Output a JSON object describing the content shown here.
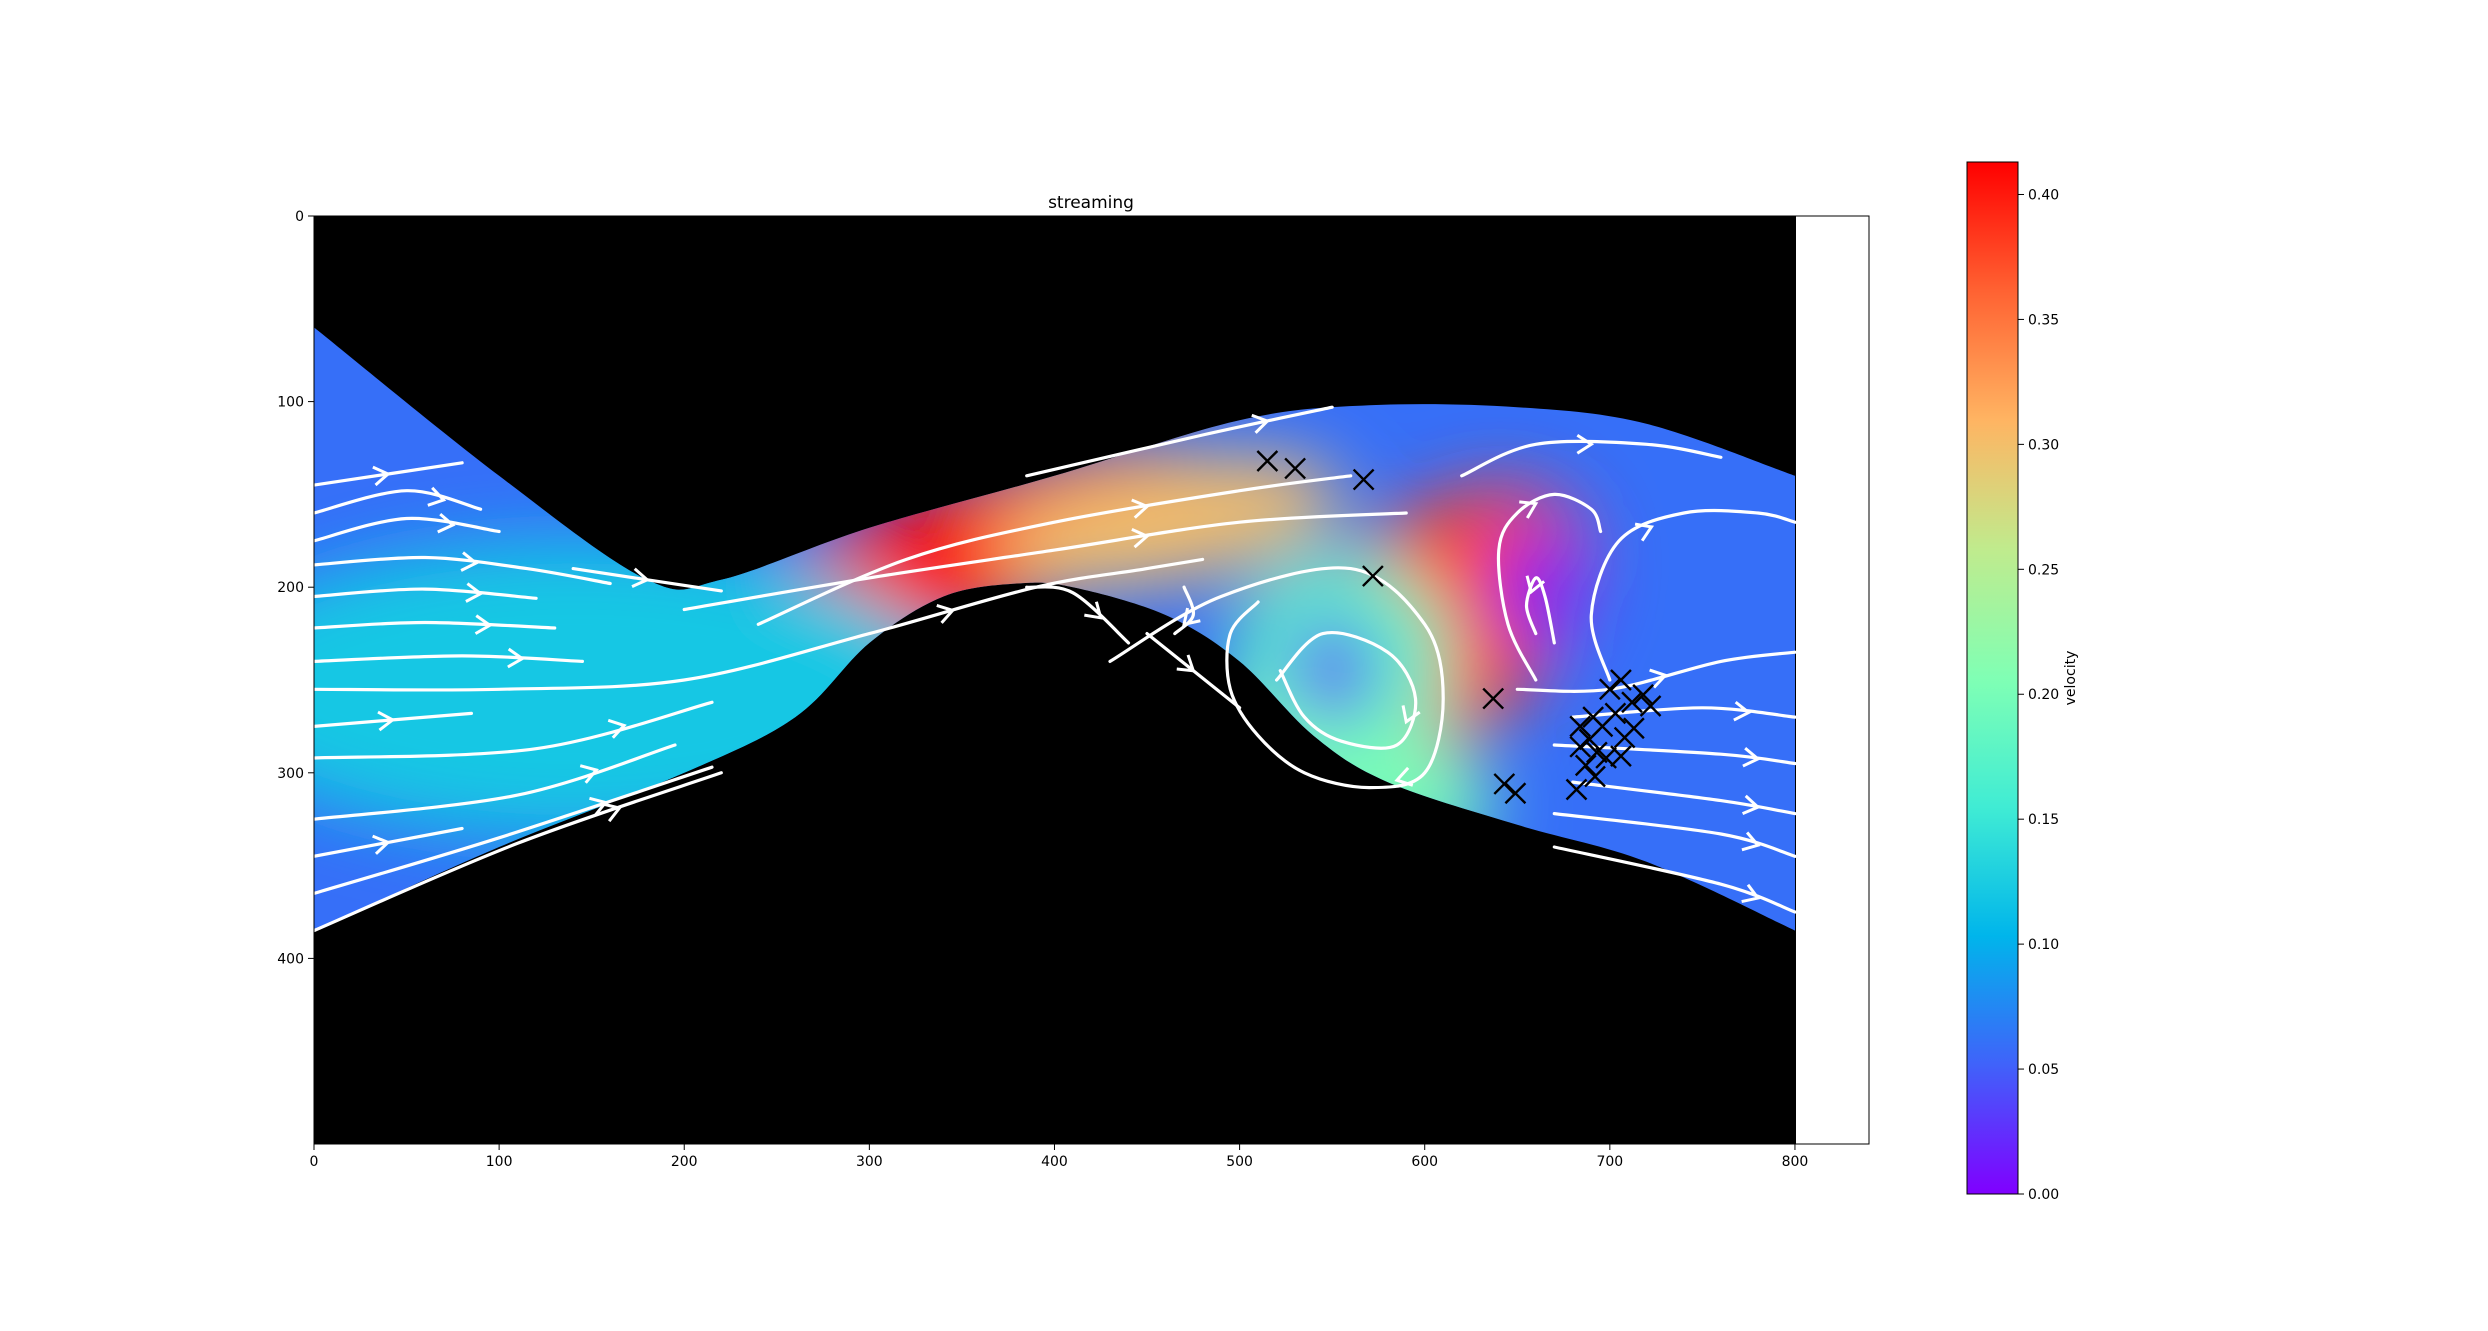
{
  "chart_data": {
    "type": "heatmap",
    "title": "streaming",
    "xlabel": "",
    "ylabel": "",
    "xlim": [
      0,
      840
    ],
    "ylim": [
      500,
      0
    ],
    "y_inverted": true,
    "x_ticks": [
      "0",
      "100",
      "200",
      "300",
      "400",
      "500",
      "600",
      "700",
      "800"
    ],
    "y_ticks": [
      "0",
      "100",
      "200",
      "300",
      "400"
    ],
    "grid": false,
    "colormap": "rainbow",
    "background_color": "#000000",
    "streamline_color": "#ffffff",
    "colorbar": {
      "label": "velocity",
      "range": [
        0,
        0.413
      ],
      "ticks": [
        "0.00",
        "0.05",
        "0.10",
        "0.15",
        "0.20",
        "0.25",
        "0.30",
        "0.35",
        "0.40"
      ],
      "colors": [
        "#8000ff",
        "#4062fa",
        "#00b5eb",
        "#40ecd4",
        "#80ffb4",
        "#c0eb8d",
        "#ffb462",
        "#ff6232",
        "#ff0000"
      ]
    },
    "channel": {
      "top_boundary": [
        [
          0,
          60
        ],
        [
          100,
          140
        ],
        [
          180,
          196
        ],
        [
          220,
          196
        ],
        [
          300,
          168
        ],
        [
          400,
          140
        ],
        [
          500,
          110
        ],
        [
          570,
          102
        ],
        [
          650,
          103
        ],
        [
          720,
          112
        ],
        [
          800,
          140
        ]
      ],
      "bottom_boundary": [
        [
          0,
          385
        ],
        [
          100,
          340
        ],
        [
          200,
          300
        ],
        [
          260,
          270
        ],
        [
          300,
          230
        ],
        [
          340,
          205
        ],
        [
          380,
          198
        ],
        [
          410,
          200
        ],
        [
          460,
          215
        ],
        [
          500,
          240
        ],
        [
          540,
          280
        ],
        [
          580,
          305
        ],
        [
          650,
          328
        ],
        [
          720,
          348
        ],
        [
          800,
          385
        ]
      ]
    },
    "velocity_hotspots": [
      {
        "x": 360,
        "y": 180,
        "velocity": 0.41
      },
      {
        "x": 460,
        "y": 165,
        "velocity": 0.3
      },
      {
        "x": 600,
        "y": 225,
        "velocity": 0.38
      },
      {
        "x": 555,
        "y": 240,
        "velocity": 0.18
      },
      {
        "x": 140,
        "y": 255,
        "velocity": 0.12
      },
      {
        "x": 560,
        "y": 300,
        "velocity": 0.2
      }
    ],
    "vortices": [
      {
        "x": 550,
        "y": 245,
        "velocity": 0.03
      },
      {
        "x": 660,
        "y": 200,
        "velocity": 0.01
      }
    ],
    "streamlines": [
      [
        [
          0,
          145
        ],
        [
          80,
          133
        ]
      ],
      [
        [
          0,
          160
        ],
        [
          50,
          148
        ],
        [
          90,
          158
        ]
      ],
      [
        [
          0,
          175
        ],
        [
          50,
          163
        ],
        [
          100,
          170
        ]
      ],
      [
        [
          0,
          188
        ],
        [
          60,
          184
        ],
        [
          115,
          190
        ],
        [
          160,
          198
        ]
      ],
      [
        [
          0,
          205
        ],
        [
          60,
          201
        ],
        [
          120,
          206
        ]
      ],
      [
        [
          0,
          222
        ],
        [
          60,
          219
        ],
        [
          130,
          222
        ]
      ],
      [
        [
          0,
          240
        ],
        [
          80,
          237
        ],
        [
          145,
          240
        ]
      ],
      [
        [
          0,
          255
        ],
        [
          100,
          255
        ],
        [
          200,
          250
        ],
        [
          300,
          225
        ],
        [
          390,
          200
        ],
        [
          450,
          190
        ],
        [
          480,
          185
        ]
      ],
      [
        [
          0,
          275
        ],
        [
          85,
          268
        ]
      ],
      [
        [
          0,
          292
        ],
        [
          120,
          287
        ],
        [
          215,
          262
        ]
      ],
      [
        [
          0,
          325
        ],
        [
          110,
          312
        ],
        [
          195,
          285
        ]
      ],
      [
        [
          0,
          345
        ],
        [
          80,
          330
        ]
      ],
      [
        [
          0,
          365
        ],
        [
          100,
          335
        ],
        [
          215,
          297
        ]
      ],
      [
        [
          0,
          385
        ],
        [
          110,
          338
        ],
        [
          220,
          300
        ]
      ],
      [
        [
          140,
          190
        ],
        [
          220,
          202
        ]
      ],
      [
        [
          200,
          212
        ],
        [
          300,
          195
        ],
        [
          400,
          180
        ],
        [
          500,
          165
        ],
        [
          590,
          160
        ]
      ],
      [
        [
          240,
          220
        ],
        [
          320,
          185
        ],
        [
          400,
          165
        ],
        [
          500,
          148
        ],
        [
          560,
          140
        ]
      ],
      [
        [
          385,
          140
        ],
        [
          480,
          118
        ],
        [
          550,
          103
        ]
      ],
      [
        [
          385,
          200
        ],
        [
          410,
          203
        ],
        [
          440,
          230
        ]
      ],
      [
        [
          450,
          225
        ],
        [
          500,
          265
        ]
      ],
      [
        [
          470,
          200
        ],
        [
          475,
          215
        ],
        [
          465,
          225
        ]
      ],
      [
        [
          430,
          240
        ],
        [
          490,
          205
        ],
        [
          560,
          190
        ],
        [
          600,
          220
        ],
        [
          610,
          260
        ],
        [
          600,
          300
        ],
        [
          570,
          308
        ],
        [
          535,
          300
        ],
        [
          510,
          280
        ],
        [
          495,
          255
        ],
        [
          495,
          225
        ],
        [
          510,
          208
        ]
      ],
      [
        [
          520,
          250
        ],
        [
          545,
          225
        ],
        [
          580,
          235
        ],
        [
          595,
          260
        ],
        [
          585,
          285
        ],
        [
          555,
          283
        ],
        [
          535,
          270
        ],
        [
          522,
          245
        ]
      ],
      [
        [
          660,
          250
        ],
        [
          645,
          220
        ],
        [
          640,
          180
        ],
        [
          650,
          160
        ],
        [
          670,
          150
        ],
        [
          690,
          158
        ],
        [
          695,
          170
        ]
      ],
      [
        [
          670,
          230
        ],
        [
          665,
          205
        ],
        [
          660,
          195
        ],
        [
          655,
          210
        ],
        [
          660,
          225
        ]
      ],
      [
        [
          620,
          140
        ],
        [
          660,
          123
        ],
        [
          720,
          123
        ],
        [
          760,
          130
        ]
      ],
      [
        [
          700,
          250
        ],
        [
          690,
          215
        ],
        [
          705,
          175
        ],
        [
          740,
          160
        ],
        [
          780,
          160
        ],
        [
          800,
          165
        ]
      ],
      [
        [
          650,
          255
        ],
        [
          700,
          255
        ],
        [
          760,
          240
        ],
        [
          800,
          235
        ]
      ],
      [
        [
          680,
          270
        ],
        [
          750,
          265
        ],
        [
          800,
          270
        ]
      ],
      [
        [
          670,
          285
        ],
        [
          760,
          290
        ],
        [
          800,
          295
        ]
      ],
      [
        [
          680,
          305
        ],
        [
          760,
          315
        ],
        [
          800,
          322
        ]
      ],
      [
        [
          670,
          322
        ],
        [
          760,
          333
        ],
        [
          800,
          345
        ]
      ],
      [
        [
          670,
          340
        ],
        [
          760,
          360
        ],
        [
          800,
          375
        ]
      ]
    ],
    "markers": {
      "symbol": "x",
      "points": [
        [
          515,
          132
        ],
        [
          530,
          136
        ],
        [
          567,
          142
        ],
        [
          572,
          194
        ],
        [
          637,
          260
        ],
        [
          643,
          306
        ],
        [
          649,
          311
        ],
        [
          684,
          275
        ],
        [
          691,
          270
        ],
        [
          700,
          255
        ],
        [
          706,
          250
        ],
        [
          712,
          262
        ],
        [
          718,
          258
        ],
        [
          722,
          264
        ],
        [
          703,
          268
        ],
        [
          696,
          275
        ],
        [
          689,
          282
        ],
        [
          684,
          286
        ],
        [
          693,
          289
        ],
        [
          698,
          292
        ],
        [
          687,
          296
        ],
        [
          692,
          302
        ],
        [
          682,
          309
        ],
        [
          708,
          281
        ],
        [
          713,
          276
        ],
        [
          706,
          291
        ]
      ]
    }
  }
}
